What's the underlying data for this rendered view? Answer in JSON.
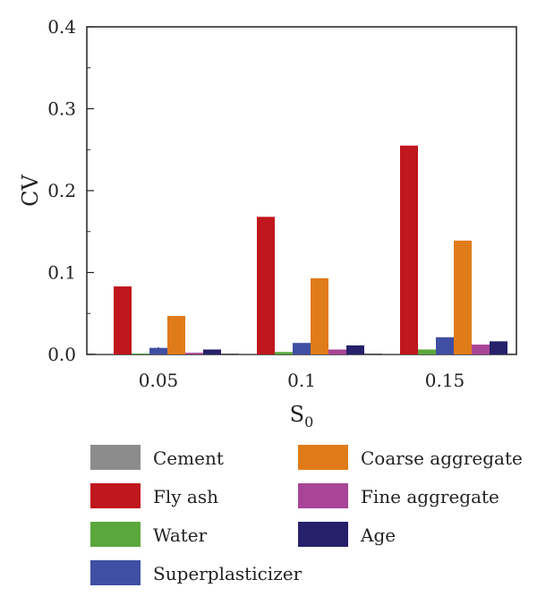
{
  "chart_data": {
    "type": "bar",
    "title": "",
    "xlabel": "S",
    "xlabel_subscript": "0",
    "ylabel": "CV",
    "categories": [
      "0.05",
      "0.1",
      "0.15"
    ],
    "ylim": [
      0,
      0.4
    ],
    "yticks": [
      "0.0",
      "0.1",
      "0.2",
      "0.3",
      "0.4"
    ],
    "grid": false,
    "legend_position": "bottom",
    "series": [
      {
        "name": "Cement",
        "color": "#8c8c8c",
        "values": [
          0.001,
          0.001,
          0.001
        ]
      },
      {
        "name": "Fly ash",
        "color": "#c0161d",
        "values": [
          0.083,
          0.168,
          0.255
        ]
      },
      {
        "name": "Water",
        "color": "#5aa83c",
        "values": [
          0.001,
          0.003,
          0.006
        ]
      },
      {
        "name": "Superplasticizer",
        "color": "#3f4fa3",
        "values": [
          0.008,
          0.014,
          0.021
        ]
      },
      {
        "name": "Coarse aggregate",
        "color": "#e07b1a",
        "values": [
          0.047,
          0.093,
          0.139
        ]
      },
      {
        "name": "Fine aggregate",
        "color": "#a94596",
        "values": [
          0.002,
          0.006,
          0.012
        ]
      },
      {
        "name": "Age",
        "color": "#26206b",
        "values": [
          0.006,
          0.011,
          0.016
        ]
      }
    ]
  }
}
